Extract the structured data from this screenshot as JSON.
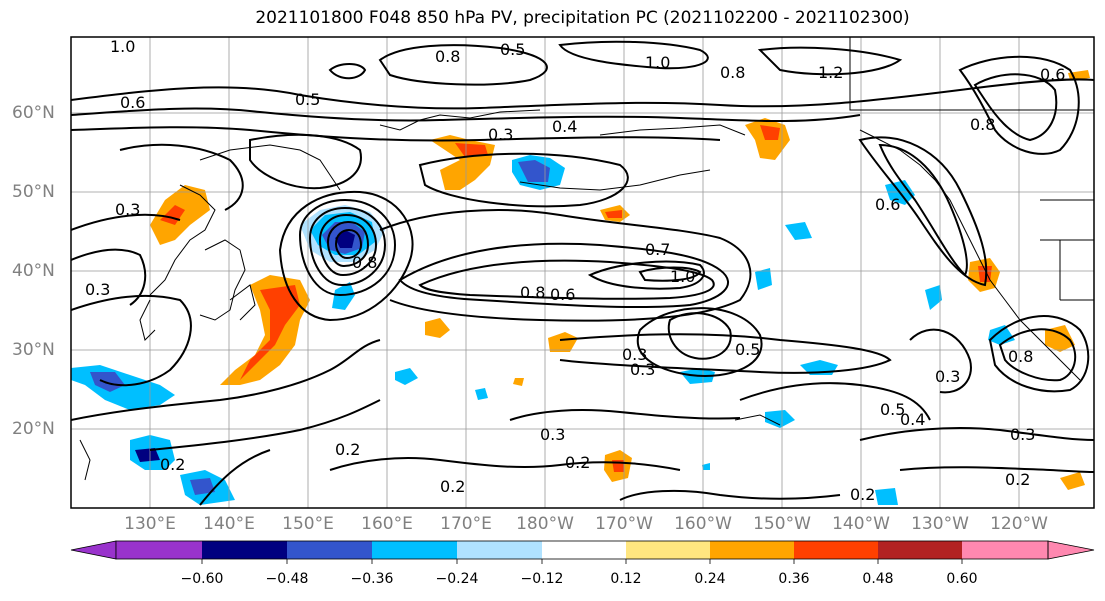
{
  "title": "2021101800 F048 850 hPa PV, precipitation PC (2021102200 - 2021102300)",
  "lat_labels": [
    "60°N",
    "50°N",
    "40°N",
    "30°N",
    "20°N"
  ],
  "lon_labels": [
    "130°E",
    "140°E",
    "150°E",
    "160°E",
    "170°E",
    "180°W",
    "170°W",
    "160°W",
    "150°W",
    "140°W",
    "130°W",
    "120°W"
  ],
  "colorbar": {
    "tick_labels": [
      "−0.60",
      "−0.48",
      "−0.36",
      "−0.24",
      "−0.12",
      "0.12",
      "0.24",
      "0.36",
      "0.48",
      "0.60"
    ],
    "colors": [
      "#9933cc",
      "#000080",
      "#3355cc",
      "#00bfff",
      "#b0e2ff",
      "#ffffff",
      "#ffe680",
      "#ffa500",
      "#ff4000",
      "#b22222",
      "#ff88b0"
    ]
  },
  "contour_labels": [
    "1.0",
    "0.5",
    "0.8",
    "0.6",
    "0.5",
    "1.2",
    "1.0",
    "0.8",
    "0.6",
    "0.3",
    "0.4",
    "0.3",
    "0.8",
    "0.6",
    "0.7",
    "1.0",
    "0.8",
    "0.8",
    "0.6",
    "0.5",
    "0.3",
    "0.3",
    "0.3",
    "0.8",
    "0.5",
    "0.4",
    "0.3",
    "0.2",
    "0.2",
    "0.2",
    "0.2",
    "0.2",
    "0.2",
    "0.3",
    "0.3"
  ]
}
